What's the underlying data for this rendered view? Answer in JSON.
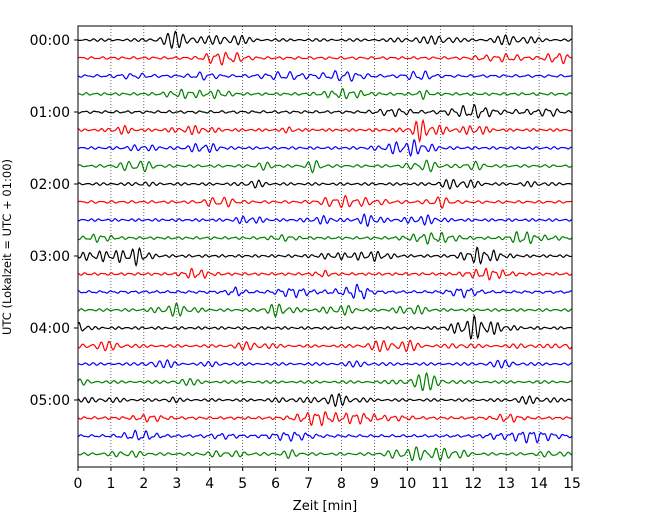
{
  "chart_data": {
    "type": "line",
    "title": "",
    "xlabel": "Zeit  [min]",
    "ylabel": "UTC (Lokalzeit = UTC + 01:00)",
    "xlim": [
      0,
      15
    ],
    "x_ticks": [
      0,
      1,
      2,
      3,
      4,
      5,
      6,
      7,
      8,
      9,
      10,
      11,
      12,
      13,
      14,
      15
    ],
    "grid": "vertical dotted at every minute",
    "y_tick_labels": [
      "00:00",
      "01:00",
      "02:00",
      "03:00",
      "04:00",
      "05:00"
    ],
    "traces_per_hour": 4,
    "trace_count": 24,
    "trace_interval_minutes": 15,
    "trace_colors": [
      "#000000",
      "#ff0000",
      "#0000ff",
      "#008000"
    ],
    "signal": "continuous oscillating seismogram traces (no discrete values)"
  }
}
